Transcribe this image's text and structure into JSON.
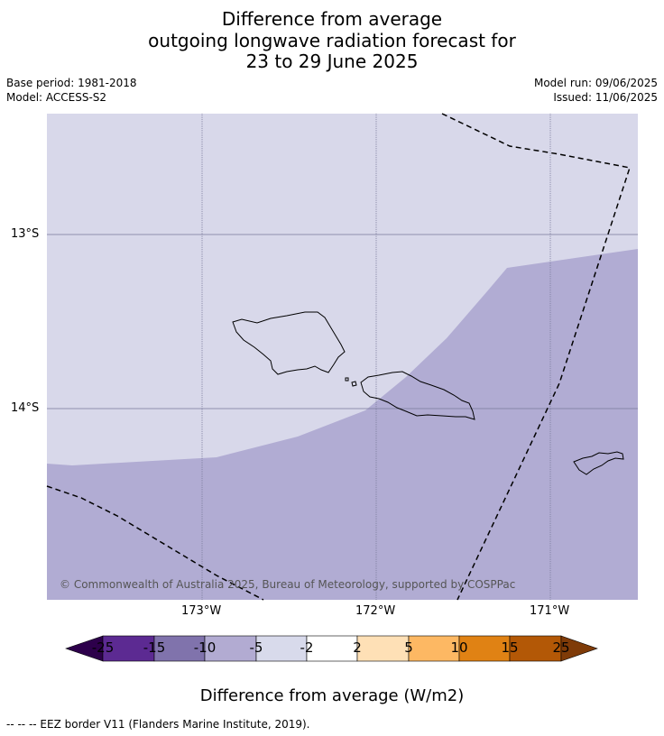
{
  "title": {
    "line1": "Difference from average",
    "line2": "outgoing longwave radiation forecast for",
    "line3": "23 to 29 June 2025"
  },
  "meta": {
    "base_period": "Base period: 1981-2018",
    "model": "Model: ACCESS-S2",
    "model_run": "Model run: 09/06/2025",
    "issued": "Issued: 11/06/2025"
  },
  "map": {
    "lat_labels": [
      "13°S",
      "14°S"
    ],
    "lon_labels": [
      "173°W",
      "172°W",
      "171°W"
    ],
    "colors": {
      "light_region": "#d8d8ea",
      "dark_region": "#b1acd3",
      "grid": "#7a7a9a",
      "coast": "#000000"
    },
    "copyright": "© Commonwealth of Australia 2025, Bureau of Meteorology, supported by COSPPac"
  },
  "colorbar": {
    "labels": [
      "-25",
      "-15",
      "-10",
      "-5",
      "-2",
      "2",
      "5",
      "10",
      "15",
      "25"
    ],
    "colors": [
      "#2d004b",
      "#5c2a92",
      "#8073ac",
      "#b2abd2",
      "#d8daeb",
      "#ffffff",
      "#fee0b6",
      "#fdb863",
      "#e08214",
      "#b35806",
      "#7f3b08"
    ],
    "title": "Difference from average (W/m2)"
  },
  "footnote": "--  --  -- EEZ border V11 (Flanders Marine Institute, 2019)."
}
